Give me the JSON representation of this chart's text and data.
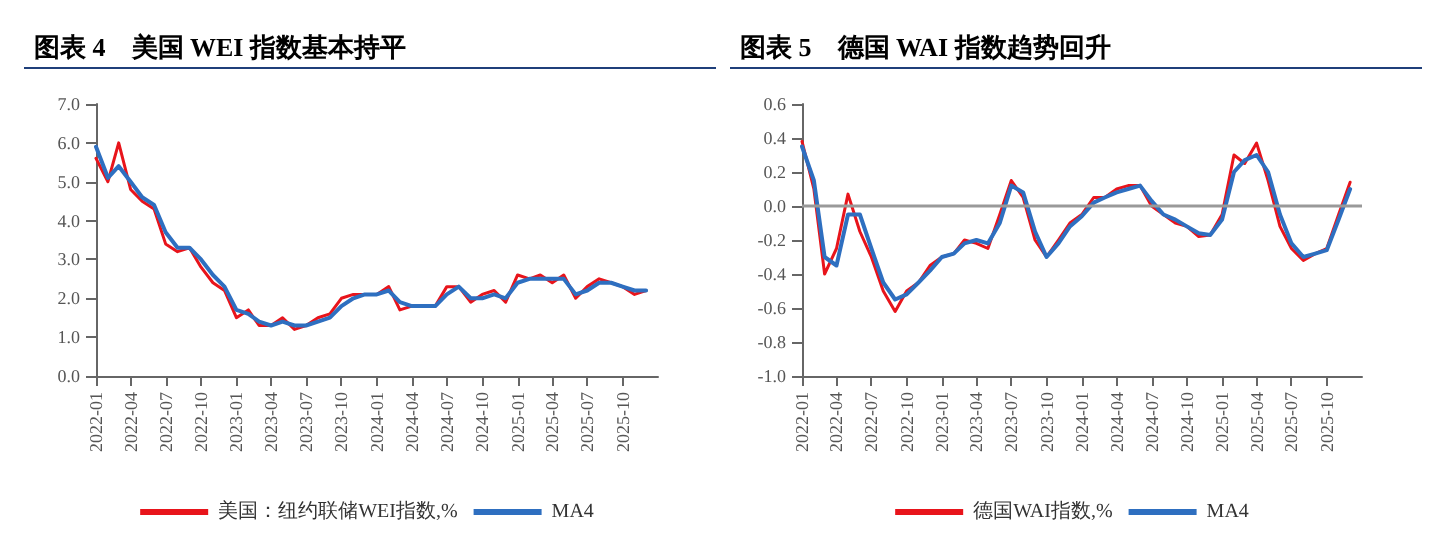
{
  "chart_data": [
    {
      "type": "line",
      "title": "图表 4　美国 WEI 指数基本持平",
      "x": [
        "2022-01",
        "2022-02",
        "2022-03",
        "2022-04",
        "2022-05",
        "2022-06",
        "2022-07",
        "2022-08",
        "2022-09",
        "2022-10",
        "2022-11",
        "2022-12",
        "2023-01",
        "2023-02",
        "2023-03",
        "2023-04",
        "2023-05",
        "2023-06",
        "2023-07",
        "2023-08",
        "2023-09",
        "2023-10",
        "2023-11",
        "2023-12",
        "2024-01",
        "2024-02",
        "2024-03",
        "2024-04",
        "2024-05",
        "2024-06",
        "2024-07",
        "2024-08",
        "2024-09",
        "2024-10",
        "2024-11",
        "2024-12",
        "2025-01",
        "2025-02",
        "2025-03",
        "2025-04",
        "2025-05",
        "2025-06",
        "2025-07",
        "2025-08",
        "2025-09",
        "2025-10",
        "2025-11",
        "2025-12"
      ],
      "series": [
        {
          "name": "美国：纽约联储WEI指数,%",
          "color": "#e8141b",
          "values": [
            5.6,
            5.0,
            6.0,
            4.8,
            4.5,
            4.3,
            3.4,
            3.2,
            3.3,
            2.8,
            2.4,
            2.2,
            1.5,
            1.7,
            1.3,
            1.3,
            1.5,
            1.2,
            1.3,
            1.5,
            1.6,
            2.0,
            2.1,
            2.1,
            2.1,
            2.3,
            1.7,
            1.8,
            1.8,
            1.8,
            2.3,
            2.3,
            1.9,
            2.1,
            2.2,
            1.9,
            2.6,
            2.5,
            2.6,
            2.4,
            2.6,
            2.0,
            2.3,
            2.5,
            2.4,
            2.3,
            2.1,
            2.2
          ]
        },
        {
          "name": "MA4",
          "color": "#2e6fc0",
          "values": [
            5.9,
            5.1,
            5.4,
            5.0,
            4.6,
            4.4,
            3.7,
            3.3,
            3.3,
            3.0,
            2.6,
            2.3,
            1.7,
            1.6,
            1.4,
            1.3,
            1.4,
            1.3,
            1.3,
            1.4,
            1.5,
            1.8,
            2.0,
            2.1,
            2.1,
            2.2,
            1.9,
            1.8,
            1.8,
            1.8,
            2.1,
            2.3,
            2.0,
            2.0,
            2.1,
            2.0,
            2.4,
            2.5,
            2.5,
            2.5,
            2.5,
            2.1,
            2.2,
            2.4,
            2.4,
            2.3,
            2.2,
            2.2
          ]
        }
      ],
      "xlim": [
        "2022-01",
        "2026-01"
      ],
      "xticks": [
        "2022-01",
        "2022-04",
        "2022-07",
        "2022-10",
        "2023-01",
        "2023-04",
        "2023-07",
        "2023-10",
        "2024-01",
        "2024-04",
        "2024-07",
        "2024-10",
        "2025-01",
        "2025-04",
        "2025-07",
        "2025-10"
      ],
      "ylim": [
        0,
        7
      ],
      "yticks": [
        {
          "value": 0,
          "label": "0.0"
        },
        {
          "value": 1,
          "label": "1.0"
        },
        {
          "value": 2,
          "label": "2.0"
        },
        {
          "value": 3,
          "label": "3.0"
        },
        {
          "value": 4,
          "label": "4.0"
        },
        {
          "value": 5,
          "label": "5.0"
        },
        {
          "value": 6,
          "label": "6.0"
        },
        {
          "value": 7,
          "label": "7.0"
        }
      ],
      "legend": "bottom",
      "line_style": "solid",
      "marker": "none"
    },
    {
      "type": "line",
      "title": "图表 5　德国 WAI 指数趋势回升",
      "x": [
        "2022-01",
        "2022-02",
        "2022-03",
        "2022-04",
        "2022-05",
        "2022-06",
        "2022-07",
        "2022-08",
        "2022-09",
        "2022-10",
        "2022-11",
        "2022-12",
        "2023-01",
        "2023-02",
        "2023-03",
        "2023-04",
        "2023-05",
        "2023-06",
        "2023-07",
        "2023-08",
        "2023-09",
        "2023-10",
        "2023-11",
        "2023-12",
        "2024-01",
        "2024-02",
        "2024-03",
        "2024-04",
        "2024-05",
        "2024-06",
        "2024-07",
        "2024-08",
        "2024-09",
        "2024-10",
        "2024-11",
        "2024-12",
        "2025-01",
        "2025-02",
        "2025-03",
        "2025-04",
        "2025-05",
        "2025-06",
        "2025-07",
        "2025-08",
        "2025-09",
        "2025-10",
        "2025-11",
        "2025-12"
      ],
      "series": [
        {
          "name": "德国WAI指数,%",
          "color": "#e8141b",
          "values": [
            0.38,
            0.1,
            -0.4,
            -0.25,
            0.07,
            -0.15,
            -0.3,
            -0.5,
            -0.62,
            -0.5,
            -0.45,
            -0.35,
            -0.3,
            -0.28,
            -0.2,
            -0.22,
            -0.25,
            -0.05,
            0.15,
            0.05,
            -0.2,
            -0.3,
            -0.2,
            -0.1,
            -0.05,
            0.05,
            0.05,
            0.1,
            0.12,
            0.12,
            0.0,
            -0.05,
            -0.1,
            -0.12,
            -0.18,
            -0.17,
            -0.05,
            0.3,
            0.25,
            0.37,
            0.15,
            -0.12,
            -0.25,
            -0.32,
            -0.28,
            -0.25,
            -0.05,
            0.14
          ]
        },
        {
          "name": "MA4",
          "color": "#2e6fc0",
          "values": [
            0.35,
            0.15,
            -0.3,
            -0.35,
            -0.05,
            -0.05,
            -0.25,
            -0.45,
            -0.55,
            -0.52,
            -0.45,
            -0.38,
            -0.3,
            -0.28,
            -0.22,
            -0.2,
            -0.22,
            -0.1,
            0.12,
            0.08,
            -0.15,
            -0.3,
            -0.22,
            -0.12,
            -0.06,
            0.02,
            0.05,
            0.08,
            0.1,
            0.12,
            0.03,
            -0.05,
            -0.08,
            -0.12,
            -0.16,
            -0.17,
            -0.08,
            0.2,
            0.27,
            0.3,
            0.2,
            -0.05,
            -0.22,
            -0.3,
            -0.28,
            -0.26,
            -0.08,
            0.1
          ]
        }
      ],
      "xlim": [
        "2022-01",
        "2026-01"
      ],
      "xticks": [
        "2022-01",
        "2022-04",
        "2022-07",
        "2022-10",
        "2023-01",
        "2023-04",
        "2023-07",
        "2023-10",
        "2024-01",
        "2024-04",
        "2024-07",
        "2024-10",
        "2025-01",
        "2025-04",
        "2025-07",
        "2025-10"
      ],
      "ylim": [
        -1,
        0.6
      ],
      "yticks": [
        {
          "value": -1,
          "label": "-1.0"
        },
        {
          "value": -0.8,
          "label": "-0.8"
        },
        {
          "value": -0.6,
          "label": "-0.6"
        },
        {
          "value": -0.4,
          "label": "-0.4"
        },
        {
          "value": -0.2,
          "label": "-0.2"
        },
        {
          "value": 0,
          "label": "0.0"
        },
        {
          "value": 0.2,
          "label": "0.2"
        },
        {
          "value": 0.4,
          "label": "0.4"
        },
        {
          "value": 0.6,
          "label": "0.6"
        }
      ],
      "ref_lines": [
        {
          "axis": "y",
          "value": 0,
          "color": "#999999"
        }
      ],
      "legend": "bottom",
      "line_style": "solid",
      "marker": "none"
    }
  ]
}
